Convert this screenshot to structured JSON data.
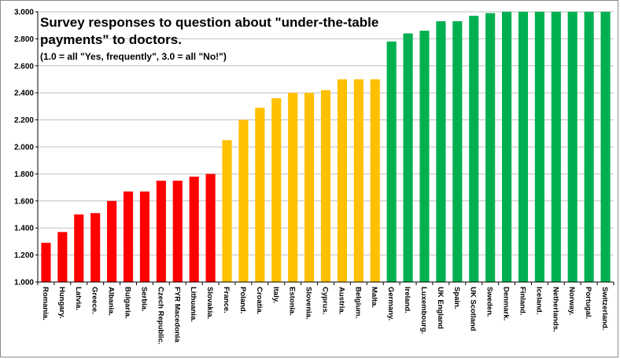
{
  "chart_data": {
    "type": "bar",
    "title": "Survey responses to question about \"under-the-table payments\" to doctors.",
    "title_lines": [
      "Survey responses to question about \"under-the-table",
      "payments\" to doctors."
    ],
    "subtitle": "(1.0 = all \"Yes, frequently\",  3.0 = all \"No!\")",
    "xlabel": "",
    "ylabel": "",
    "ylim": [
      1.0,
      3.0
    ],
    "yticks": [
      "1.000",
      "1.200",
      "1.400",
      "1.600",
      "1.800",
      "2.000",
      "2.200",
      "2.400",
      "2.600",
      "2.800",
      "3.000"
    ],
    "grid": true,
    "legend": "none",
    "colors": {
      "red": "#ff0000",
      "orange": "#ffc000",
      "green": "#00b050",
      "grid": "#bfbfbf",
      "axis": "#000000"
    },
    "categories": [
      "Romania.",
      "Hungary.",
      "Latvia.",
      "Greece.",
      "Albania.",
      "Bulgaria.",
      "Serbia.",
      "Czech Republic.",
      "FYR Macedonia",
      "Lithuania.",
      "Slovakia.",
      "France.",
      "Poland.",
      "Croatia.",
      "Italy.",
      "Estonia.",
      "Slovenia.",
      "Cyprus.",
      "Austria.",
      "Belgium.",
      "Malta.",
      "Germany.",
      "Ireland.",
      "Luxembourg.",
      "UK England",
      "Spain.",
      "UK Scotland",
      "Sweden.",
      "Denmark.",
      "Finland.",
      "Iceland.",
      "Netherlands.",
      "Norway.",
      "Portugal.",
      "Switzerland."
    ],
    "values": [
      1.29,
      1.37,
      1.5,
      1.51,
      1.6,
      1.67,
      1.67,
      1.75,
      1.75,
      1.78,
      1.8,
      2.05,
      2.2,
      2.29,
      2.36,
      2.4,
      2.4,
      2.42,
      2.5,
      2.5,
      2.5,
      2.78,
      2.84,
      2.86,
      2.93,
      2.93,
      2.97,
      2.99,
      3.0,
      3.0,
      3.0,
      3.0,
      3.0,
      3.0,
      3.0
    ],
    "bar_colors": [
      "red",
      "red",
      "red",
      "red",
      "red",
      "red",
      "red",
      "red",
      "red",
      "red",
      "red",
      "orange",
      "orange",
      "orange",
      "orange",
      "orange",
      "orange",
      "orange",
      "orange",
      "orange",
      "orange",
      "green",
      "green",
      "green",
      "green",
      "green",
      "green",
      "green",
      "green",
      "green",
      "green",
      "green",
      "green",
      "green",
      "green"
    ]
  }
}
